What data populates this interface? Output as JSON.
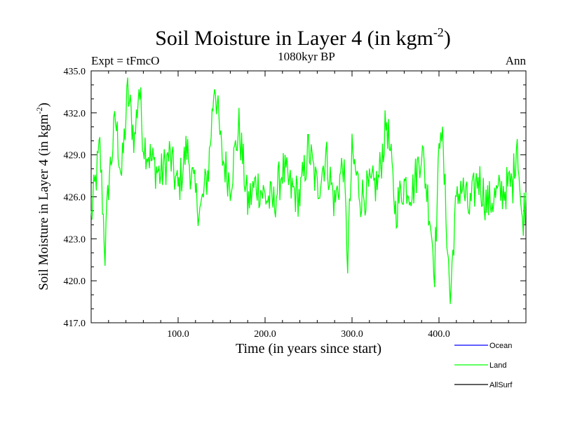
{
  "chart_data": {
    "type": "line",
    "title": "Soil Moisture in Layer 4 (in kgm",
    "title_sup": "-2",
    "title_close": ")",
    "subtitle": "1080kyr BP",
    "left_label": "Expt = tFmcO",
    "right_label": "Ann",
    "xlabel": "Time (in years since start)",
    "ylabel": "Soil Moisture in Layer 4 (in kgm",
    "ylabel_sup": "-2",
    "ylabel_close": ")",
    "xlim": [
      0,
      500
    ],
    "ylim": [
      417.0,
      435.0
    ],
    "xticks": [
      100,
      200,
      300,
      400
    ],
    "xtick_labels": [
      "100.0",
      "200.0",
      "300.0",
      "400.0"
    ],
    "yticks": [
      417,
      420,
      423,
      426,
      429,
      432,
      435
    ],
    "ytick_labels": [
      "417.0",
      "420.0",
      "423.0",
      "426.0",
      "429.0",
      "432.0",
      "435.0"
    ],
    "legend": [
      {
        "label": "Ocean",
        "color": "#0000ff"
      },
      {
        "label": "Land",
        "color": "#00ff00"
      },
      {
        "label": "AllSurf",
        "color": "#000000"
      }
    ],
    "series": [
      {
        "name": "Land",
        "color": "#00ff00",
        "x": [
          0,
          10,
          16,
          20,
          28,
          35,
          42,
          50,
          55,
          60,
          70,
          80,
          90,
          100,
          110,
          120,
          126,
          135,
          142,
          150,
          160,
          170,
          180,
          190,
          200,
          210,
          220,
          230,
          240,
          250,
          260,
          270,
          280,
          290,
          295,
          300,
          310,
          320,
          330,
          340,
          350,
          360,
          370,
          380,
          390,
          395,
          402,
          408,
          413,
          418,
          425,
          435,
          445,
          455,
          465,
          475,
          485,
          490,
          495,
          500
        ],
        "values": [
          424.5,
          429.5,
          422.0,
          427.0,
          431.5,
          427.5,
          433.5,
          430.0,
          434.0,
          430.0,
          428.5,
          427.5,
          429.0,
          426.5,
          429.5,
          426.0,
          425.0,
          428.0,
          434.5,
          429.0,
          427.0,
          431.0,
          425.5,
          427.0,
          426.0,
          425.5,
          428.0,
          426.5,
          426.0,
          429.5,
          426.5,
          429.0,
          425.5,
          428.5,
          421.5,
          429.0,
          426.0,
          426.5,
          427.0,
          431.5,
          425.0,
          427.0,
          426.5,
          429.5,
          424.5,
          421.0,
          432.0,
          425.0,
          418.5,
          424.5,
          427.0,
          425.0,
          427.5,
          425.5,
          426.0,
          426.5,
          427.0,
          430.5,
          424.0,
          426.0
        ]
      }
    ]
  }
}
